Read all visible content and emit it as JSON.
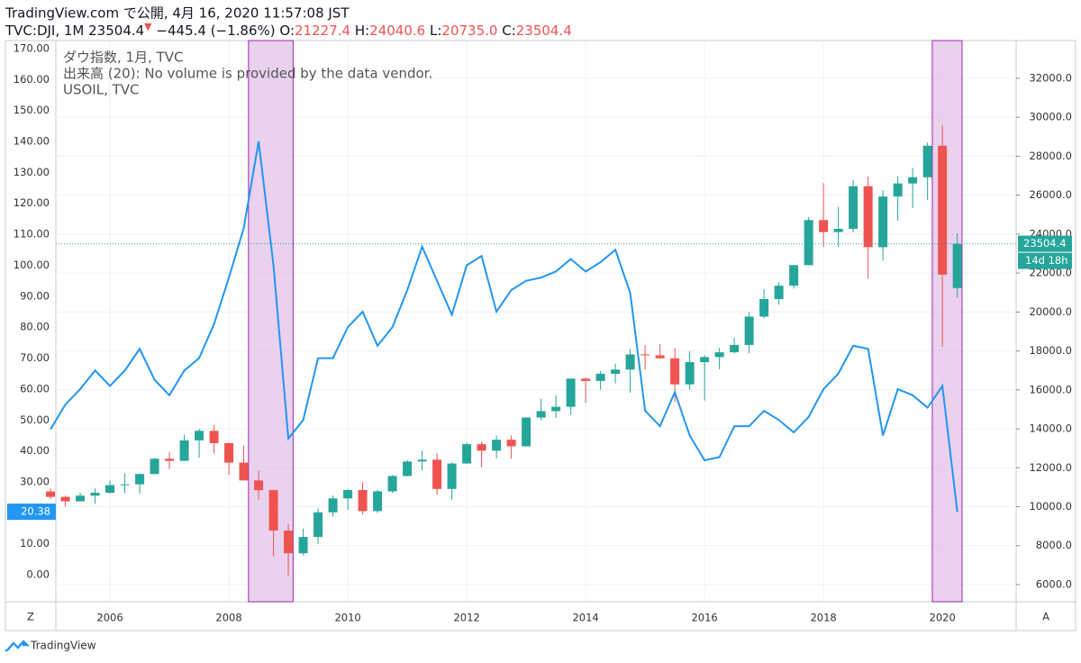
{
  "header": {
    "title": "TradingView.com で公開, 4月 16, 2020 11:57:08 JST",
    "symbol": "TVC:DJI, 1M 23504.4",
    "arrow": "▼",
    "change": "−445.4 (−1.86%)",
    "o_label": "O:",
    "o": "21227.4",
    "h_label": "H:",
    "h": "24040.6",
    "l_label": "L:",
    "l": "20735.0",
    "c_label": "C:",
    "c": "23504.4"
  },
  "legend": [
    "ダウ指数, 1月, TVC",
    "出来高 (20): No volume is provided by the data vendor.",
    "USOIL, TVC"
  ],
  "footer": "TradingView",
  "corner_left": "Z",
  "corner_right": "A",
  "chart_data": {
    "type": "candlestick",
    "x": [
      2005,
      2005.25,
      2005.5,
      2005.75,
      2006,
      2006.25,
      2006.5,
      2006.75,
      2007,
      2007.25,
      2007.5,
      2007.75,
      2008,
      2008.25,
      2008.5,
      2008.75,
      2009,
      2009.25,
      2009.5,
      2009.75,
      2010,
      2010.25,
      2010.5,
      2010.75,
      2011,
      2011.25,
      2011.5,
      2011.75,
      2012,
      2012.25,
      2012.5,
      2012.75,
      2013,
      2013.25,
      2013.5,
      2013.75,
      2014,
      2014.25,
      2014.5,
      2014.75,
      2015,
      2015.25,
      2015.5,
      2015.75,
      2016,
      2016.25,
      2016.5,
      2016.75,
      2017,
      2017.25,
      2017.5,
      2017.75,
      2018,
      2018.25,
      2018.5,
      2018.75,
      2019,
      2019.25,
      2019.5,
      2019.75,
      2020,
      2020.25
    ],
    "series": [
      {
        "name": "ダウ指数, 1月, TVC",
        "axis": "y2",
        "up_color": "#26a69a",
        "down_color": "#ef5350",
        "open": [
          10783,
          10504,
          10275,
          10569,
          10718,
          11109,
          11150,
          11679,
          12463,
          12354,
          13408,
          13896,
          13265,
          12262,
          11350,
          10851,
          8776,
          7609,
          8447,
          9712,
          10428,
          10857,
          9774,
          10788,
          11578,
          12320,
          12414,
          10913,
          12218,
          13212,
          12880,
          13437,
          13104,
          14579,
          14910,
          15130,
          16577,
          16458,
          16827,
          17043,
          17823,
          17776,
          17620,
          16285,
          17425,
          17685,
          17930,
          18308,
          19763,
          20663,
          21350,
          22405,
          24719,
          24103,
          24271,
          26458,
          23327,
          25929,
          26600,
          26917,
          28538,
          21227.4
        ],
        "high": [
          10940,
          10570,
          10720,
          10940,
          11335,
          11710,
          11720,
          12510,
          12795,
          13692,
          14000,
          14198,
          13279,
          13136,
          11867,
          10882,
          9088,
          8877,
          9917,
          10580,
          10908,
          11258,
          10860,
          11625,
          12391,
          12876,
          12753,
          12284,
          13290,
          13338,
          13653,
          13661,
          14585,
          15542,
          15709,
          16589,
          16631,
          16978,
          17350,
          18103,
          18289,
          18351,
          18137,
          17978,
          17790,
          18168,
          18668,
          19988,
          21169,
          21535,
          22419,
          24876,
          26617,
          25403,
          26770,
          26952,
          26242,
          26955,
          27399,
          28702,
          29569,
          24040.6
        ],
        "low": [
          10403,
          10012,
          10270,
          10157,
          10660,
          10700,
          10684,
          11670,
          11940,
          12350,
          12518,
          12724,
          11634,
          11346,
          10365,
          7450,
          6470,
          7500,
          8087,
          9487,
          9835,
          9614,
          9686,
          10700,
          11555,
          11862,
          10604,
          10362,
          12217,
          12035,
          12492,
          12471,
          13104,
          14434,
          14551,
          14719,
          15340,
          16015,
          16333,
          15855,
          17037,
          17590,
          15370,
          16013,
          15451,
          17063,
          17883,
          17884,
          19677,
          20379,
          21197,
          22405,
          23344,
          23344,
          24084,
          21713,
          22638,
          24680,
          25339,
          25743,
          18214,
          20735.0
        ],
        "close": [
          10504,
          10275,
          10569,
          10718,
          11109,
          11150,
          11679,
          12463,
          12354,
          13408,
          13896,
          13265,
          12262,
          11350,
          10851,
          8776,
          7609,
          8447,
          9712,
          10428,
          10857,
          9774,
          10788,
          11578,
          12320,
          12414,
          10913,
          12218,
          13212,
          12880,
          13437,
          13104,
          14579,
          14910,
          15130,
          16577,
          16458,
          16827,
          17043,
          17823,
          17776,
          17620,
          16285,
          17425,
          17685,
          17930,
          18308,
          19763,
          20663,
          21350,
          22405,
          24719,
          24103,
          24271,
          26458,
          23327,
          25929,
          26600,
          26917,
          28538,
          21917,
          23504.4
        ]
      },
      {
        "name": "USOIL, TVC",
        "type": "line",
        "axis": "y",
        "color": "#2196f3",
        "values": [
          47,
          55,
          60,
          66,
          61,
          66,
          73,
          63,
          58,
          66,
          70,
          81,
          96,
          112,
          140,
          100,
          44,
          50,
          70,
          70,
          80,
          85,
          74,
          80,
          92,
          106,
          95,
          84,
          100,
          103,
          85,
          92,
          95,
          96,
          98,
          102,
          98,
          101,
          105,
          91,
          53,
          48,
          59,
          45,
          37,
          38,
          48,
          48,
          53,
          50,
          46,
          51,
          60,
          65,
          74,
          73,
          45,
          60,
          58,
          54,
          61,
          20.38
        ]
      }
    ],
    "last_price": 23504.4,
    "last_price_label": "23504.4",
    "countdown": "14d 18h",
    "oil_last_label": "20.38",
    "highlights": [
      [
        2008.33,
        2009.08
      ],
      [
        2019.83,
        2020.33
      ]
    ],
    "highlight_color": "#e1bee7",
    "xlim": [
      2005.09,
      2021.24
    ],
    "xticks": [
      2006,
      2008,
      2010,
      2012,
      2014,
      2016,
      2018,
      2020
    ],
    "ylim": [
      -8.7,
      172.6
    ],
    "yticks": [
      {
        "value": 0,
        "label": "0.00"
      },
      {
        "value": 10,
        "label": "10.00"
      },
      {
        "value": 20,
        "label": "20.00"
      },
      {
        "value": 30,
        "label": "30.00"
      },
      {
        "value": 40,
        "label": "40.00"
      },
      {
        "value": 50,
        "label": "50.00"
      },
      {
        "value": 60,
        "label": "60.00"
      },
      {
        "value": 70,
        "label": "70.00"
      },
      {
        "value": 80,
        "label": "80.00"
      },
      {
        "value": 90,
        "label": "90.00"
      },
      {
        "value": 100,
        "label": "100.00"
      },
      {
        "value": 110,
        "label": "110.00"
      },
      {
        "value": 120,
        "label": "120.00"
      },
      {
        "value": 130,
        "label": "130.00"
      },
      {
        "value": 140,
        "label": "140.00"
      },
      {
        "value": 150,
        "label": "150.00"
      },
      {
        "value": 160,
        "label": "160.00"
      },
      {
        "value": 170,
        "label": "170.00"
      }
    ],
    "y2lim": [
      5120,
      33940
    ],
    "y2ticks": [
      {
        "value": 6000,
        "label": "6000.0"
      },
      {
        "value": 8000,
        "label": "8000.0"
      },
      {
        "value": 10000,
        "label": "10000.0"
      },
      {
        "value": 12000,
        "label": "12000.0"
      },
      {
        "value": 14000,
        "label": "14000.0"
      },
      {
        "value": 16000,
        "label": "16000.0"
      },
      {
        "value": 18000,
        "label": "18000.0"
      },
      {
        "value": 20000,
        "label": "20000.0"
      },
      {
        "value": 22000,
        "label": "22000.0"
      },
      {
        "value": 24000,
        "label": "24000.0"
      },
      {
        "value": 26000,
        "label": "26000.0"
      },
      {
        "value": 28000,
        "label": "28000.0"
      },
      {
        "value": 30000,
        "label": "30000.0"
      },
      {
        "value": 32000,
        "label": "32000.0"
      }
    ],
    "grid": true
  }
}
